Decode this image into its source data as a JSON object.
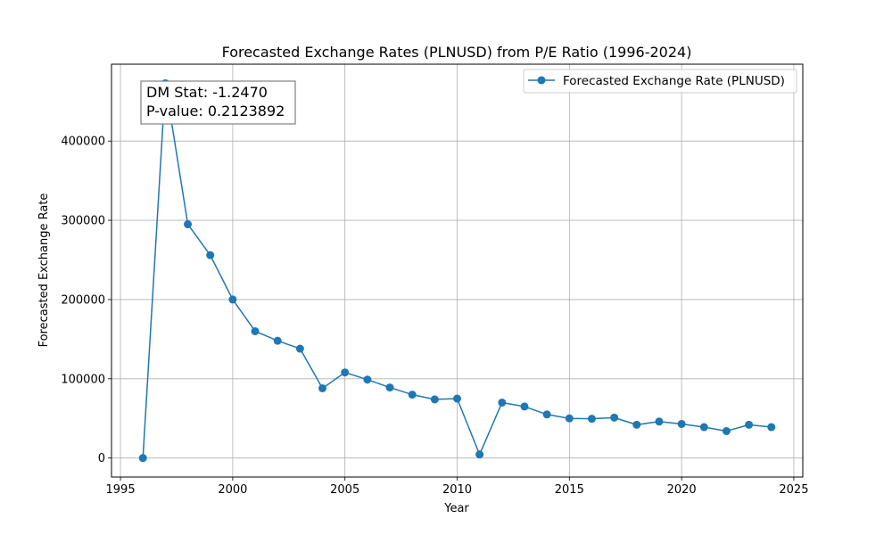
{
  "chart_data": {
    "type": "line",
    "title": "Forecasted Exchange Rates (PLNUSD) from P/E Ratio (1996-2024)",
    "xlabel": "Year",
    "ylabel": "Forecasted Exchange Rate",
    "xlim": [
      1994.6,
      2025.4
    ],
    "ylim": [
      -24000,
      497000
    ],
    "x_ticks": [
      1995,
      2000,
      2005,
      2010,
      2015,
      2020,
      2025
    ],
    "y_ticks": [
      0,
      100000,
      200000,
      300000,
      400000
    ],
    "grid": true,
    "legend_position": "top-right",
    "colors": {
      "series": "#1f77b4",
      "grid": "#b0b0b0",
      "axis": "#000000"
    },
    "series": [
      {
        "name": "Forecasted Exchange Rate (PLNUSD)",
        "marker": "circle",
        "x": [
          1996,
          1997,
          1998,
          1999,
          2000,
          2001,
          2002,
          2003,
          2004,
          2005,
          2006,
          2007,
          2008,
          2009,
          2010,
          2011,
          2012,
          2013,
          2014,
          2015,
          2016,
          2017,
          2018,
          2019,
          2020,
          2021,
          2022,
          2023,
          2024
        ],
        "y": [
          0,
          473000,
          295000,
          256000,
          200000,
          160000,
          148000,
          138000,
          88000,
          108000,
          99000,
          89000,
          80000,
          74000,
          75000,
          4500,
          70000,
          65000,
          55000,
          50000,
          49500,
          51000,
          42000,
          46000,
          43000,
          39000,
          34000,
          42000,
          39000
        ]
      }
    ],
    "annotation": {
      "lines": [
        "DM Stat: -1.2470",
        "P-value: 0.2123892"
      ],
      "position": "top-left"
    }
  }
}
